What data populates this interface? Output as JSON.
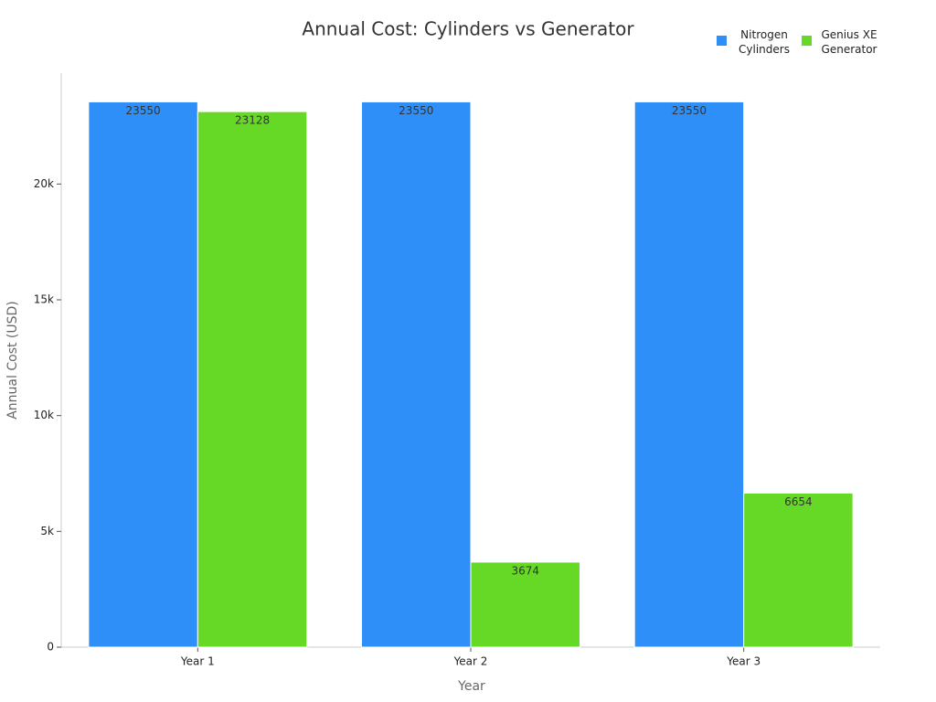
{
  "chart_data": {
    "type": "bar",
    "title": "Annual Cost: Cylinders vs Generator",
    "x_label": "Year",
    "y_label": "Annual Cost (USD)",
    "categories": [
      "Year 1",
      "Year 2",
      "Year 3"
    ],
    "series": [
      {
        "name": "Nitrogen Cylinders",
        "color": "#2d8ff7",
        "values": [
          23550,
          23550,
          23550
        ]
      },
      {
        "name": "Genius XE Generator",
        "color": "#66d926",
        "values": [
          23128,
          3674,
          6654
        ]
      }
    ],
    "ylim": [
      0,
      24790
    ],
    "yticks": [
      0,
      {
        "value": 5000,
        "label": "5k"
      },
      {
        "value": 10000,
        "label": "10k"
      },
      {
        "value": 15000,
        "label": "15k"
      },
      {
        "value": 20000,
        "label": "20k"
      }
    ],
    "legend": "top-right"
  }
}
